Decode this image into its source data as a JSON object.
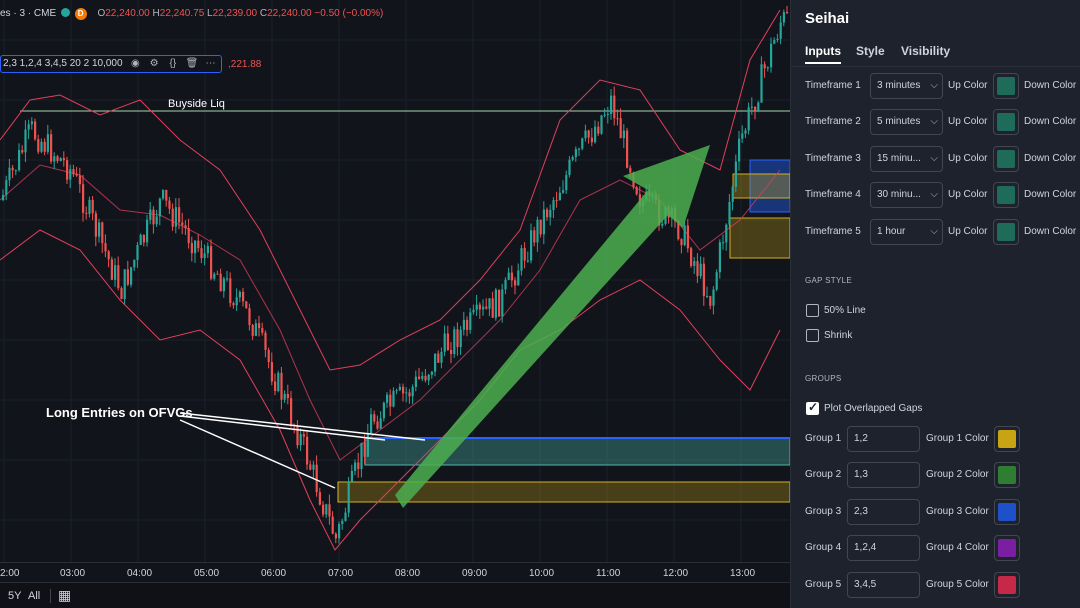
{
  "chart": {
    "symbol_suffix": "es · 3 · CME",
    "open_label": "O",
    "open": "22,240.00",
    "high_label": "H",
    "high": "22,240.75",
    "low_label": "L",
    "low": "22,239.00",
    "close_label": "C",
    "close": "22,240.00",
    "change": "−0.50 (−0.00%)",
    "badge": "D",
    "indicator_params": "2,3 1,2,4 3,4,5 20 2 10,000",
    "indicator_value": ",221.88",
    "annotation_buyside": "Buyside Liq",
    "annotation_long": "Long Entries on OFVGs",
    "time_ticks": [
      "2:00",
      "03:00",
      "04:00",
      "05:00",
      "06:00",
      "07:00",
      "08:00",
      "09:00",
      "10:00",
      "11:00",
      "12:00",
      "13:00"
    ],
    "range_buttons": [
      "5Y",
      "All"
    ],
    "colors": {
      "up": "#26a69a",
      "down": "#ef5350",
      "bands": "#e0405a",
      "arrow": "#4caf50",
      "buyside_line": "#a5d6a7"
    }
  },
  "panel": {
    "title": "Seihai",
    "tabs": [
      "Inputs",
      "Style",
      "Visibility"
    ],
    "timeframes": [
      {
        "label": "Timeframe 1",
        "value": "3 minutes",
        "up": "Up Color",
        "down": "Down Color"
      },
      {
        "label": "Timeframe 2",
        "value": "5 minutes",
        "up": "Up Color",
        "down": "Down Color"
      },
      {
        "label": "Timeframe 3",
        "value": "15 minu...",
        "up": "Up Color",
        "down": "Down Color"
      },
      {
        "label": "Timeframe 4",
        "value": "30 minu...",
        "up": "Up Color",
        "down": "Down Color"
      },
      {
        "label": "Timeframe 5",
        "value": "1 hour",
        "up": "Up Color",
        "down": "Down Color"
      }
    ],
    "gap_style_header": "GAP STYLE",
    "option_50": "50% Line",
    "option_shrink": "Shrink",
    "groups_header": "GROUPS",
    "option_overlap": "Plot Overlapped Gaps",
    "groups": [
      {
        "label": "Group 1",
        "value": "1,2",
        "color_label": "Group 1 Color",
        "color": "#c8a415"
      },
      {
        "label": "Group 2",
        "value": "1,3",
        "color_label": "Group 2 Color",
        "color": "#2e7d32"
      },
      {
        "label": "Group 3",
        "value": "2,3",
        "color_label": "Group 3 Color",
        "color": "#1e50c8"
      },
      {
        "label": "Group 4",
        "value": "1,2,4",
        "color_label": "Group 4 Color",
        "color": "#7b1fa2"
      },
      {
        "label": "Group 5",
        "value": "3,4,5",
        "color_label": "Group 5 Color",
        "color": "#c62848"
      }
    ],
    "swatch_up": "#1f6b5a",
    "swatch_down": "#0f5a50"
  }
}
